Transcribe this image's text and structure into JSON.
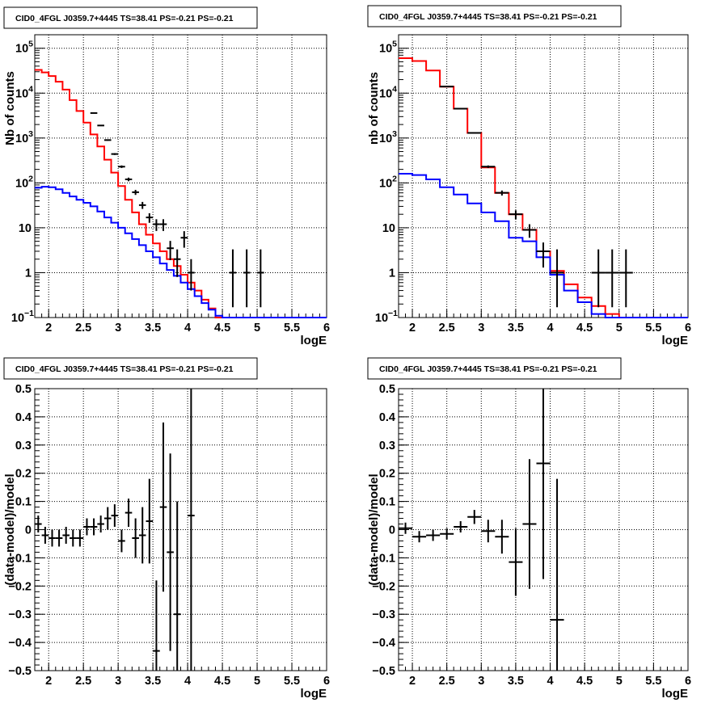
{
  "chart_data": [
    {
      "type": "line",
      "title": "CID0_4FGL J0359.7+4445 TS=38.41 PS=-0.21 PS=-0.21",
      "xlabel": "logE",
      "ylabel": "Nb of counts",
      "xlim": [
        1.8,
        6.0
      ],
      "ylim": [
        0.1,
        200000
      ],
      "yscale": "log",
      "grid": true,
      "x_ticks": [
        "2",
        "2.5",
        "3",
        "3.5",
        "4",
        "4.5",
        "5",
        "5.5",
        "6"
      ],
      "y_ticks": [
        {
          "value": 0.1,
          "mant": "10",
          "exp": "−1"
        },
        {
          "value": 1,
          "mant": "1",
          "exp": ""
        },
        {
          "value": 10,
          "mant": "10",
          "exp": ""
        },
        {
          "value": 100,
          "mant": "10",
          "exp": "2"
        },
        {
          "value": 1000,
          "mant": "10",
          "exp": "3"
        },
        {
          "value": 10000,
          "mant": "10",
          "exp": "4"
        },
        {
          "value": 100000,
          "mant": "10",
          "exp": "5"
        }
      ],
      "bin_width": 0.1,
      "series": [
        {
          "kind": "step",
          "color": "#ff0000",
          "x": [
            1.8,
            1.9,
            2.0,
            2.1,
            2.2,
            2.3,
            2.4,
            2.5,
            2.6,
            2.7,
            2.8,
            2.9,
            3.0,
            3.1,
            3.2,
            3.3,
            3.4,
            3.5,
            3.6,
            3.7,
            3.8,
            3.9,
            4.0,
            4.1,
            4.2,
            4.3,
            4.4,
            4.5,
            4.6,
            4.7,
            4.8,
            4.9,
            5.0,
            5.1,
            5.2,
            5.3,
            5.4,
            5.5,
            5.6,
            5.7,
            5.8,
            5.9
          ],
          "values": [
            33000,
            29000,
            24000,
            18000,
            12000,
            7000,
            4000,
            2200,
            1200,
            650,
            330,
            170,
            85,
            42,
            22,
            12,
            7,
            4.5,
            3.0,
            2.0,
            1.4,
            0.9,
            0.6,
            0.4,
            0.25,
            0.16,
            0.1,
            0.1,
            0.1,
            0.1,
            0.1,
            0.1,
            0.1,
            0.1,
            0.1,
            0.1,
            0.1,
            0.1,
            0.1,
            0.1,
            0.1,
            0.1
          ]
        },
        {
          "kind": "step",
          "color": "#0000ff",
          "x": [
            1.8,
            1.9,
            2.0,
            2.1,
            2.2,
            2.3,
            2.4,
            2.5,
            2.6,
            2.7,
            2.8,
            2.9,
            3.0,
            3.1,
            3.2,
            3.3,
            3.4,
            3.5,
            3.6,
            3.7,
            3.8,
            3.9,
            4.0,
            4.1,
            4.2,
            4.3,
            4.4,
            4.5,
            4.6,
            4.7,
            4.8,
            4.9,
            5.0,
            5.1,
            5.2,
            5.3,
            5.4,
            5.5,
            5.6,
            5.7,
            5.8,
            5.9
          ],
          "values": [
            78,
            82,
            80,
            72,
            60,
            50,
            42,
            36,
            30,
            23,
            17,
            13,
            10,
            7.5,
            5.6,
            4.1,
            3.0,
            2.2,
            1.6,
            1.15,
            0.85,
            0.6,
            0.43,
            0.3,
            0.21,
            0.15,
            0.11,
            0.1,
            0.1,
            0.1,
            0.1,
            0.1,
            0.1,
            0.1,
            0.1,
            0.1,
            0.1,
            0.1,
            0.1,
            0.1,
            0.1,
            0.1
          ]
        },
        {
          "kind": "points",
          "color": "#000000",
          "x": [
            2.65,
            2.75,
            2.85,
            2.95,
            3.05,
            3.15,
            3.25,
            3.35,
            3.45,
            3.55,
            3.65,
            3.75,
            3.85,
            3.95,
            4.05,
            4.65,
            4.85,
            5.05
          ],
          "values": [
            3600,
            1900,
            900,
            440,
            230,
            120,
            62,
            32,
            17,
            12,
            12,
            3.5,
            2.0,
            6.0,
            1.0,
            1.0,
            1.0,
            1.0
          ],
          "err_lo": [
            60,
            44,
            30,
            21,
            15,
            11,
            8,
            5.7,
            4.1,
            3.5,
            3.5,
            1.6,
            1.2,
            2.4,
            0.6,
            0.83,
            0.83,
            0.83
          ],
          "err_hi": [
            60,
            44,
            30,
            21,
            15,
            11,
            8,
            5.7,
            4.1,
            3.5,
            3.5,
            1.6,
            1.3,
            2.4,
            1.0,
            2.3,
            2.3,
            2.3
          ]
        }
      ]
    },
    {
      "type": "line",
      "title": "CID0_4FGL J0359.7+4445 TS=38.41 PS=-0.21 PS=-0.21",
      "xlabel": "logE",
      "ylabel": "nb of counts",
      "xlim": [
        1.8,
        6.0
      ],
      "ylim": [
        0.1,
        200000
      ],
      "yscale": "log",
      "grid": true,
      "x_ticks": [
        "2",
        "2.5",
        "3",
        "3.5",
        "4",
        "4.5",
        "5",
        "5.5",
        "6"
      ],
      "y_ticks": [
        {
          "value": 0.1,
          "mant": "10",
          "exp": "−1"
        },
        {
          "value": 1,
          "mant": "1",
          "exp": ""
        },
        {
          "value": 10,
          "mant": "10",
          "exp": ""
        },
        {
          "value": 100,
          "mant": "10",
          "exp": "2"
        },
        {
          "value": 1000,
          "mant": "10",
          "exp": "3"
        },
        {
          "value": 10000,
          "mant": "10",
          "exp": "4"
        },
        {
          "value": 100000,
          "mant": "10",
          "exp": "5"
        }
      ],
      "bin_width": 0.2,
      "series": [
        {
          "kind": "step",
          "color": "#ff0000",
          "x": [
            1.8,
            2.0,
            2.2,
            2.4,
            2.6,
            2.8,
            3.0,
            3.2,
            3.4,
            3.6,
            3.8,
            4.0,
            4.2,
            4.4,
            4.6,
            4.8,
            5.0,
            5.2,
            5.4,
            5.6,
            5.8
          ],
          "values": [
            60000,
            52000,
            32000,
            14000,
            4500,
            1300,
            220,
            60,
            20,
            9,
            3,
            1.1,
            0.55,
            0.28,
            0.18,
            0.12,
            0.1,
            0.1,
            0.1,
            0.1,
            0.1
          ]
        },
        {
          "kind": "step",
          "color": "#0000ff",
          "x": [
            1.8,
            2.0,
            2.2,
            2.4,
            2.6,
            2.8,
            3.0,
            3.2,
            3.4,
            3.6,
            3.8,
            4.0,
            4.2,
            4.4,
            4.6,
            4.8,
            5.0,
            5.2,
            5.4,
            5.6,
            5.8
          ],
          "values": [
            160,
            150,
            120,
            80,
            55,
            35,
            22,
            14,
            6,
            5,
            2.2,
            0.9,
            0.4,
            0.22,
            0.12,
            0.1,
            0.1,
            0.1,
            0.1,
            0.1,
            0.1
          ]
        },
        {
          "kind": "points",
          "color": "#000000",
          "x": [
            2.5,
            2.7,
            2.9,
            3.1,
            3.3,
            3.5,
            3.7,
            3.9,
            4.1,
            4.7,
            4.9,
            5.1
          ],
          "values": [
            14000,
            4500,
            1300,
            230,
            60,
            20,
            9,
            3,
            1.0,
            1.0,
            1.0,
            1.0
          ],
          "err_lo": [
            118,
            67,
            36,
            15,
            7.7,
            4.5,
            3,
            1.7,
            0.83,
            0.83,
            0.83,
            0.83
          ],
          "err_hi": [
            118,
            67,
            36,
            15,
            7.7,
            4.5,
            3,
            1.7,
            2.3,
            2.3,
            2.3,
            2.3
          ]
        }
      ]
    },
    {
      "type": "scatter",
      "title": "CID0_4FGL J0359.7+4445 TS=38.41 PS=-0.21 PS=-0.21",
      "xlabel": "logE",
      "ylabel": "(data-model)/model",
      "xlim": [
        1.8,
        6.0
      ],
      "ylim": [
        -0.5,
        0.5
      ],
      "yscale": "linear",
      "grid": true,
      "x_ticks": [
        "2",
        "2.5",
        "3",
        "3.5",
        "4",
        "4.5",
        "5",
        "5.5",
        "6"
      ],
      "y_ticks": [
        {
          "value": -0.5,
          "mant": "−0.5",
          "exp": ""
        },
        {
          "value": -0.4,
          "mant": "−0.4",
          "exp": ""
        },
        {
          "value": -0.3,
          "mant": "−0.3",
          "exp": ""
        },
        {
          "value": -0.2,
          "mant": "−0.2",
          "exp": ""
        },
        {
          "value": -0.1,
          "mant": "−0.1",
          "exp": ""
        },
        {
          "value": 0,
          "mant": "0",
          "exp": ""
        },
        {
          "value": 0.1,
          "mant": "0.1",
          "exp": ""
        },
        {
          "value": 0.2,
          "mant": "0.2",
          "exp": ""
        },
        {
          "value": 0.3,
          "mant": "0.3",
          "exp": ""
        },
        {
          "value": 0.4,
          "mant": "0.4",
          "exp": ""
        },
        {
          "value": 0.5,
          "mant": "0.5",
          "exp": ""
        }
      ],
      "bin_width": 0.1,
      "series": [
        {
          "kind": "points",
          "color": "#000000",
          "x": [
            1.85,
            1.95,
            2.05,
            2.15,
            2.25,
            2.35,
            2.45,
            2.55,
            2.65,
            2.75,
            2.85,
            2.95,
            3.05,
            3.15,
            3.25,
            3.35,
            3.45,
            3.55,
            3.65,
            3.75,
            3.85,
            4.05
          ],
          "values": [
            0.02,
            -0.02,
            -0.03,
            -0.03,
            -0.02,
            -0.03,
            -0.03,
            0.01,
            0.01,
            0.02,
            0.04,
            0.05,
            -0.04,
            0.06,
            -0.03,
            -0.02,
            0.03,
            -0.43,
            0.08,
            -0.08,
            -0.3,
            0.05
          ],
          "err_lo": [
            0.03,
            0.03,
            0.03,
            0.03,
            0.03,
            0.03,
            0.03,
            0.03,
            0.03,
            0.03,
            0.04,
            0.04,
            0.04,
            0.05,
            0.07,
            0.1,
            0.15,
            0.25,
            0.3,
            0.35,
            0.4,
            0.8
          ],
          "err_hi": [
            0.03,
            0.03,
            0.03,
            0.03,
            0.03,
            0.03,
            0.03,
            0.03,
            0.03,
            0.03,
            0.04,
            0.04,
            0.04,
            0.05,
            0.07,
            0.1,
            0.15,
            0.25,
            0.3,
            0.35,
            0.4,
            0.8
          ]
        }
      ]
    },
    {
      "type": "scatter",
      "title": "CID0_4FGL J0359.7+4445 TS=38.41 PS=-0.21 PS=-0.21",
      "xlabel": "logE",
      "ylabel": "(data-model)/model",
      "xlim": [
        1.8,
        6.0
      ],
      "ylim": [
        -0.5,
        0.5
      ],
      "yscale": "linear",
      "grid": true,
      "x_ticks": [
        "2",
        "2.5",
        "3",
        "3.5",
        "4",
        "4.5",
        "5",
        "5.5",
        "6"
      ],
      "y_ticks": [
        {
          "value": -0.5,
          "mant": "−0.5",
          "exp": ""
        },
        {
          "value": -0.4,
          "mant": "−0.4",
          "exp": ""
        },
        {
          "value": -0.3,
          "mant": "−0.3",
          "exp": ""
        },
        {
          "value": -0.2,
          "mant": "−0.2",
          "exp": ""
        },
        {
          "value": -0.1,
          "mant": "−0.1",
          "exp": ""
        },
        {
          "value": 0,
          "mant": "0",
          "exp": ""
        },
        {
          "value": 0.1,
          "mant": "0.1",
          "exp": ""
        },
        {
          "value": 0.2,
          "mant": "0.2",
          "exp": ""
        },
        {
          "value": 0.3,
          "mant": "0.3",
          "exp": ""
        },
        {
          "value": 0.4,
          "mant": "0.4",
          "exp": ""
        },
        {
          "value": 0.5,
          "mant": "0.5",
          "exp": ""
        }
      ],
      "bin_width": 0.2,
      "series": [
        {
          "kind": "points",
          "color": "#000000",
          "x": [
            1.9,
            2.1,
            2.3,
            2.5,
            2.7,
            2.9,
            3.1,
            3.3,
            3.5,
            3.7,
            3.9,
            4.1
          ],
          "values": [
            0.005,
            -0.025,
            -0.02,
            -0.015,
            0.01,
            0.045,
            -0.005,
            -0.025,
            -0.115,
            0.02,
            0.235,
            -0.32
          ],
          "err_lo": [
            0.02,
            0.02,
            0.02,
            0.02,
            0.02,
            0.025,
            0.04,
            0.06,
            0.12,
            0.23,
            0.41,
            0.5
          ],
          "err_hi": [
            0.02,
            0.02,
            0.02,
            0.02,
            0.02,
            0.025,
            0.04,
            0.06,
            0.12,
            0.23,
            0.41,
            0.5
          ]
        }
      ]
    }
  ]
}
